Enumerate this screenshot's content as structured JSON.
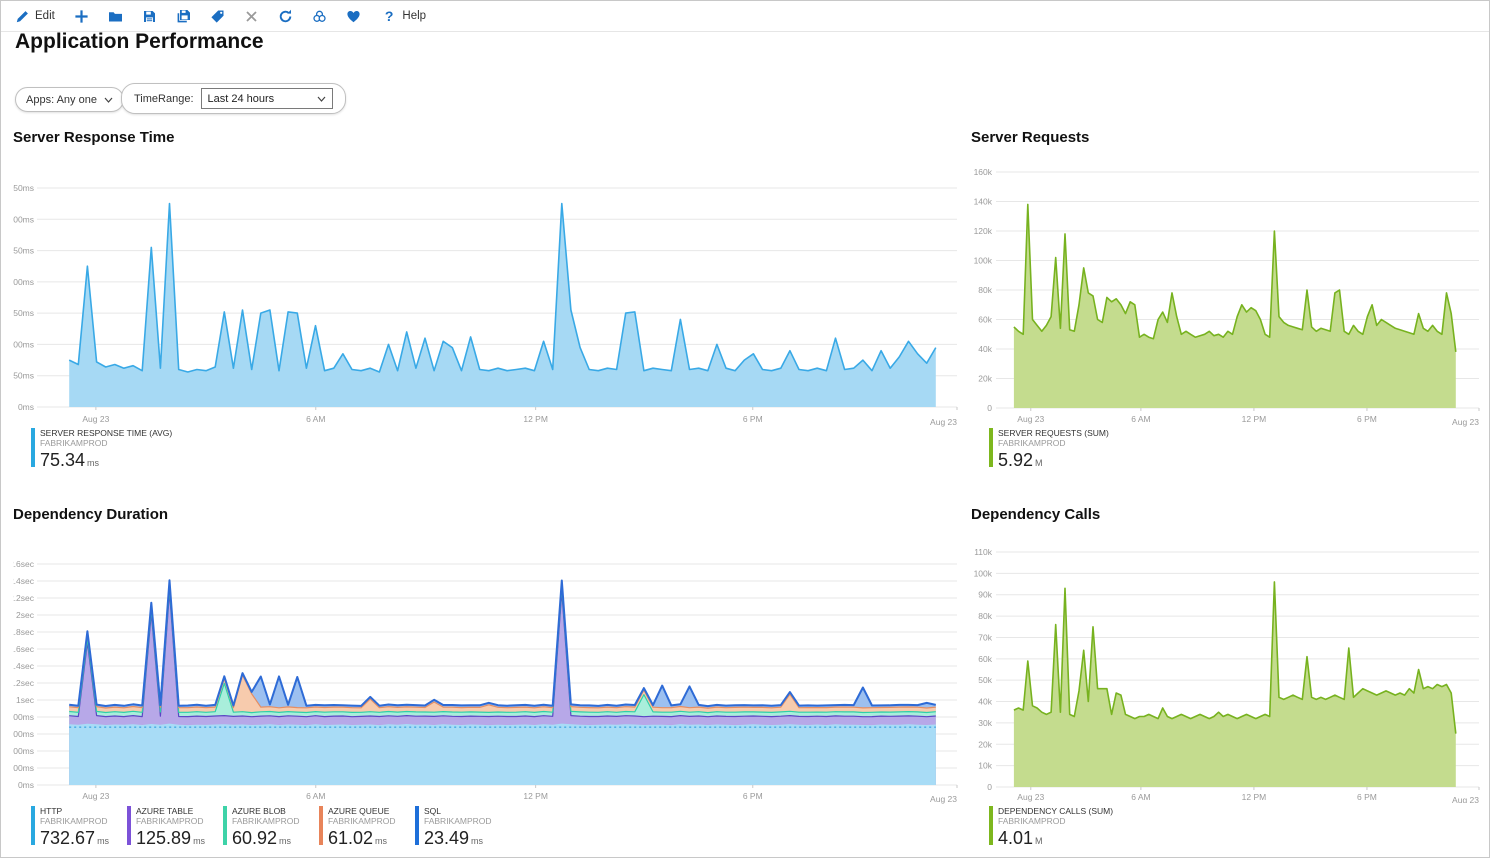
{
  "toolbar": {
    "edit_label": "Edit",
    "help_label": "Help",
    "accent_color": "#1b6ec2",
    "disabled_color": "#9a9a9a"
  },
  "page": {
    "title": "Application Performance"
  },
  "filters": {
    "apps_label": "Apps: Any one",
    "time_range_label": "TimeRange:",
    "time_range_value": "Last 24 hours"
  },
  "chart_data": [
    {
      "id": "c1",
      "type": "area",
      "title": "Server Response Time",
      "ylim": [
        0,
        350
      ],
      "y_ticks": [
        {
          "v": 0,
          "label": "0ms"
        },
        {
          "v": 50,
          "label": "50ms"
        },
        {
          "v": 100,
          "label": "100ms"
        },
        {
          "v": 150,
          "label": "150ms"
        },
        {
          "v": 200,
          "label": "200ms"
        },
        {
          "v": 250,
          "label": "250ms"
        },
        {
          "v": 300,
          "label": "300ms"
        },
        {
          "v": 350,
          "label": "350ms"
        }
      ],
      "x_ticks": [
        "Aug 23",
        "6 AM",
        "12 PM",
        "6 PM",
        "Aug 23"
      ],
      "series": [
        {
          "name": "SERVER RESPONSE TIME (AVG)",
          "stroke": "#39a9e6",
          "fill": "#a6d9f4",
          "values": [
            75,
            68,
            225,
            72,
            64,
            68,
            62,
            66,
            58,
            255,
            62,
            325,
            60,
            56,
            60,
            58,
            64,
            152,
            62,
            155,
            60,
            150,
            155,
            58,
            152,
            150,
            62,
            130,
            58,
            62,
            85,
            60,
            58,
            62,
            56,
            100,
            58,
            120,
            62,
            110,
            58,
            105,
            95,
            58,
            112,
            60,
            58,
            62,
            58,
            60,
            62,
            58,
            105,
            60,
            325,
            155,
            95,
            60,
            58,
            62,
            60,
            150,
            152,
            58,
            62,
            60,
            58,
            140,
            60,
            62,
            58,
            100,
            62,
            58,
            75,
            85,
            60,
            58,
            62,
            90,
            60,
            58,
            62,
            58,
            110,
            60,
            62,
            75,
            58,
            90,
            62,
            80,
            105,
            85,
            70,
            95
          ]
        }
      ],
      "legend": [
        {
          "name": "SERVER RESPONSE TIME (AVG)",
          "app": "FABRIKAMPROD",
          "value": "75.34",
          "unit": "ms",
          "color": "#29a8e0"
        }
      ]
    },
    {
      "id": "c2",
      "type": "area",
      "title": "Server Requests",
      "ylim": [
        0,
        160
      ],
      "y_unit": "thousands",
      "y_ticks": [
        {
          "v": 0,
          "label": "0"
        },
        {
          "v": 20,
          "label": "20k"
        },
        {
          "v": 40,
          "label": "40k"
        },
        {
          "v": 60,
          "label": "60k"
        },
        {
          "v": 80,
          "label": "80k"
        },
        {
          "v": 100,
          "label": "100k"
        },
        {
          "v": 120,
          "label": "120k"
        },
        {
          "v": 140,
          "label": "140k"
        },
        {
          "v": 160,
          "label": "160k"
        }
      ],
      "x_ticks": [
        "Aug 23",
        "6 AM",
        "12 PM",
        "6 PM",
        "Aug 23"
      ],
      "series": [
        {
          "name": "SERVER REQUESTS (SUM)",
          "stroke": "#77b21f",
          "fill": "#c4dc8e",
          "values": [
            55,
            52,
            50,
            138,
            60,
            56,
            52,
            56,
            62,
            102,
            54,
            118,
            53,
            52,
            70,
            95,
            78,
            76,
            60,
            58,
            75,
            72,
            74,
            70,
            64,
            72,
            70,
            48,
            50,
            48,
            47,
            60,
            65,
            58,
            78,
            62,
            50,
            52,
            50,
            48,
            49,
            50,
            52,
            49,
            50,
            48,
            52,
            50,
            62,
            70,
            65,
            68,
            66,
            60,
            50,
            48,
            120,
            62,
            58,
            56,
            55,
            54,
            53,
            80,
            55,
            52,
            54,
            53,
            52,
            78,
            80,
            52,
            50,
            56,
            52,
            50,
            62,
            70,
            56,
            60,
            58,
            56,
            54,
            53,
            52,
            51,
            50,
            64,
            54,
            52,
            56,
            52,
            50,
            78,
            64,
            38
          ]
        }
      ],
      "legend": [
        {
          "name": "SERVER REQUESTS (SUM)",
          "app": "FABRIKAMPROD",
          "value": "5.92",
          "unit": "M",
          "color": "#7db71e"
        }
      ]
    },
    {
      "id": "c3",
      "type": "stacked-area",
      "title": "Dependency Duration",
      "ylim": [
        0,
        2600
      ],
      "ref_line": {
        "v": 680,
        "style": "dotted",
        "color": "#45a8e6"
      },
      "y_ticks": [
        {
          "v": 0,
          "label": "0ms"
        },
        {
          "v": 200,
          "label": "200ms"
        },
        {
          "v": 400,
          "label": "400ms"
        },
        {
          "v": 600,
          "label": "600ms"
        },
        {
          "v": 800,
          "label": "800ms"
        },
        {
          "v": 1000,
          "label": "1sec"
        },
        {
          "v": 1200,
          "label": "1.2sec"
        },
        {
          "v": 1400,
          "label": "1.4sec"
        },
        {
          "v": 1600,
          "label": "1.6sec"
        },
        {
          "v": 1800,
          "label": "1.8sec"
        },
        {
          "v": 2000,
          "label": "2sec"
        },
        {
          "v": 2200,
          "label": "2.2sec"
        },
        {
          "v": 2400,
          "label": "2.4sec"
        },
        {
          "v": 2600,
          "label": "2.6sec"
        }
      ],
      "x_ticks": [
        "Aug 23",
        "6 AM",
        "12 PM",
        "6 PM",
        "Aug 23"
      ],
      "series": [
        {
          "name": "HTTP",
          "stroke": "none",
          "fill": "#a8dcf6",
          "values": [
            715,
            708,
            720,
            714,
            706,
            712,
            708,
            715,
            706,
            718,
            710,
            722,
            708,
            705,
            710,
            707,
            712,
            715,
            708,
            712,
            706,
            710,
            714,
            706,
            712,
            710,
            705,
            715,
            706,
            710,
            712,
            706,
            708,
            712,
            705,
            715,
            708,
            718,
            710,
            712,
            706,
            714,
            710,
            706,
            712,
            708,
            705,
            710,
            706,
            708,
            712,
            706,
            714,
            708,
            722,
            715,
            710,
            706,
            708,
            712,
            708,
            714,
            712,
            706,
            710,
            708,
            705,
            716,
            708,
            712,
            706,
            712,
            708,
            705,
            710,
            714,
            708,
            706,
            710,
            715,
            708,
            706,
            712,
            706,
            714,
            708,
            710,
            706,
            705,
            712,
            708,
            710,
            714,
            710,
            706,
            712
          ]
        },
        {
          "name": "AZURE TABLE",
          "stroke": "#5b47c4",
          "fill": "#b7a8e8",
          "values": [
            100,
            98,
            955,
            102,
            99,
            100,
            97,
            101,
            99,
            1300,
            100,
            1550,
            98,
            100,
            101,
            99,
            100,
            102,
            99,
            100,
            98,
            101,
            100,
            99,
            102,
            100,
            98,
            100,
            99,
            101,
            100,
            98,
            99,
            100,
            101,
            99,
            100,
            98,
            100,
            99,
            101,
            100,
            98,
            100,
            99,
            100,
            101,
            99,
            100,
            98,
            100,
            99,
            101,
            100,
            1550,
            102,
            99,
            100,
            98,
            100,
            99,
            101,
            100,
            98,
            100,
            99,
            100,
            101,
            99,
            100,
            98,
            100,
            99,
            101,
            100,
            98,
            100,
            99,
            100,
            101,
            99,
            100,
            98,
            100,
            99,
            101,
            100,
            98,
            100,
            99,
            100,
            101,
            99,
            100,
            98,
            100
          ]
        },
        {
          "name": "AZURE BLOB",
          "stroke": "#2fd0a8",
          "fill": "#a9eedb",
          "values": [
            50,
            49,
            51,
            50,
            48,
            50,
            49,
            51,
            50,
            49,
            50,
            52,
            49,
            50,
            51,
            49,
            50,
            380,
            49,
            50,
            48,
            50,
            51,
            49,
            50,
            48,
            50,
            49,
            51,
            50,
            49,
            50,
            48,
            50,
            49,
            51,
            50,
            49,
            50,
            48,
            50,
            49,
            51,
            50,
            49,
            50,
            48,
            50,
            49,
            51,
            50,
            49,
            50,
            48,
            50,
            49,
            51,
            50,
            49,
            50,
            48,
            50,
            49,
            260,
            50,
            49,
            51,
            50,
            49,
            50,
            48,
            50,
            49,
            51,
            50,
            48,
            50,
            49,
            50,
            51,
            49,
            50,
            48,
            50,
            49,
            51,
            50,
            49,
            50,
            48,
            50,
            49,
            51,
            50,
            49,
            50
          ]
        },
        {
          "name": "AZURE QUEUE",
          "stroke": "#e58e62",
          "fill": "#f7cbad",
          "values": [
            55,
            54,
            56,
            55,
            53,
            55,
            54,
            56,
            55,
            54,
            55,
            57,
            54,
            55,
            56,
            54,
            55,
            56,
            54,
            430,
            220,
            55,
            56,
            54,
            55,
            53,
            55,
            54,
            56,
            55,
            54,
            55,
            53,
            150,
            54,
            56,
            55,
            54,
            55,
            53,
            120,
            54,
            56,
            55,
            54,
            55,
            90,
            55,
            54,
            56,
            55,
            54,
            55,
            53,
            57,
            56,
            54,
            55,
            53,
            55,
            54,
            56,
            55,
            53,
            55,
            54,
            55,
            56,
            54,
            55,
            53,
            55,
            54,
            56,
            55,
            53,
            55,
            54,
            55,
            200,
            54,
            55,
            53,
            55,
            54,
            56,
            55,
            54,
            55,
            53,
            55,
            56,
            54,
            55,
            53,
            55
          ]
        },
        {
          "name": "SQL",
          "stroke": "#2e6bd6",
          "fill": "#9cc0f0",
          "values": [
            25,
            24,
            26,
            25,
            23,
            25,
            24,
            26,
            25,
            24,
            25,
            27,
            24,
            25,
            26,
            24,
            25,
            26,
            24,
            25,
            23,
            360,
            26,
            370,
            25,
            360,
            25,
            24,
            26,
            25,
            24,
            25,
            23,
            25,
            24,
            26,
            25,
            24,
            25,
            23,
            25,
            24,
            26,
            25,
            24,
            25,
            23,
            25,
            24,
            26,
            25,
            24,
            25,
            23,
            27,
            26,
            24,
            25,
            23,
            25,
            24,
            26,
            25,
            23,
            25,
            260,
            25,
            26,
            250,
            25,
            23,
            25,
            24,
            26,
            25,
            23,
            25,
            24,
            25,
            26,
            24,
            25,
            23,
            25,
            24,
            26,
            25,
            240,
            25,
            24,
            25,
            26,
            24,
            25,
            60,
            25
          ]
        }
      ],
      "legend": [
        {
          "name": "HTTP",
          "app": "FABRIKAMPROD",
          "value": "732.67",
          "unit": "ms",
          "color": "#29a8e0"
        },
        {
          "name": "AZURE TABLE",
          "app": "FABRIKAMPROD",
          "value": "125.89",
          "unit": "ms",
          "color": "#7c52d8"
        },
        {
          "name": "AZURE BLOB",
          "app": "FABRIKAMPROD",
          "value": "60.92",
          "unit": "ms",
          "color": "#3ed3a8"
        },
        {
          "name": "AZURE QUEUE",
          "app": "FABRIKAMPROD",
          "value": "61.02",
          "unit": "ms",
          "color": "#e8845a"
        },
        {
          "name": "SQL",
          "app": "FABRIKAMPROD",
          "value": "23.49",
          "unit": "ms",
          "color": "#1e6fd9"
        }
      ]
    },
    {
      "id": "c4",
      "type": "area",
      "title": "Dependency Calls",
      "ylim": [
        0,
        110
      ],
      "y_unit": "thousands",
      "y_ticks": [
        {
          "v": 0,
          "label": "0"
        },
        {
          "v": 10,
          "label": "10k"
        },
        {
          "v": 20,
          "label": "20k"
        },
        {
          "v": 30,
          "label": "30k"
        },
        {
          "v": 40,
          "label": "40k"
        },
        {
          "v": 50,
          "label": "50k"
        },
        {
          "v": 60,
          "label": "60k"
        },
        {
          "v": 70,
          "label": "70k"
        },
        {
          "v": 80,
          "label": "80k"
        },
        {
          "v": 90,
          "label": "90k"
        },
        {
          "v": 100,
          "label": "100k"
        },
        {
          "v": 110,
          "label": "110k"
        }
      ],
      "x_ticks": [
        "Aug 23",
        "6 AM",
        "12 PM",
        "6 PM",
        "Aug 23"
      ],
      "series": [
        {
          "name": "DEPENDENCY CALLS (SUM)",
          "stroke": "#77b21f",
          "fill": "#c4dc8e",
          "values": [
            36,
            37,
            36,
            59,
            38,
            37,
            35,
            34,
            35,
            76,
            35,
            93,
            34,
            33,
            45,
            64,
            40,
            75,
            46,
            46,
            46,
            34,
            44,
            43,
            34,
            33,
            32,
            33,
            33,
            34,
            33,
            32,
            37,
            33,
            32,
            33,
            34,
            33,
            32,
            33,
            34,
            33,
            32,
            33,
            35,
            33,
            34,
            33,
            32,
            33,
            34,
            33,
            32,
            33,
            34,
            33,
            96,
            42,
            41,
            42,
            43,
            42,
            41,
            61,
            42,
            41,
            42,
            41,
            42,
            43,
            42,
            41,
            65,
            42,
            44,
            46,
            45,
            44,
            43,
            44,
            45,
            44,
            43,
            44,
            43,
            46,
            44,
            55,
            46,
            47,
            46,
            48,
            47,
            48,
            44,
            25
          ]
        }
      ],
      "legend": [
        {
          "name": "DEPENDENCY CALLS (SUM)",
          "app": "FABRIKAMPROD",
          "value": "4.01",
          "unit": "M",
          "color": "#7db71e"
        }
      ]
    }
  ]
}
